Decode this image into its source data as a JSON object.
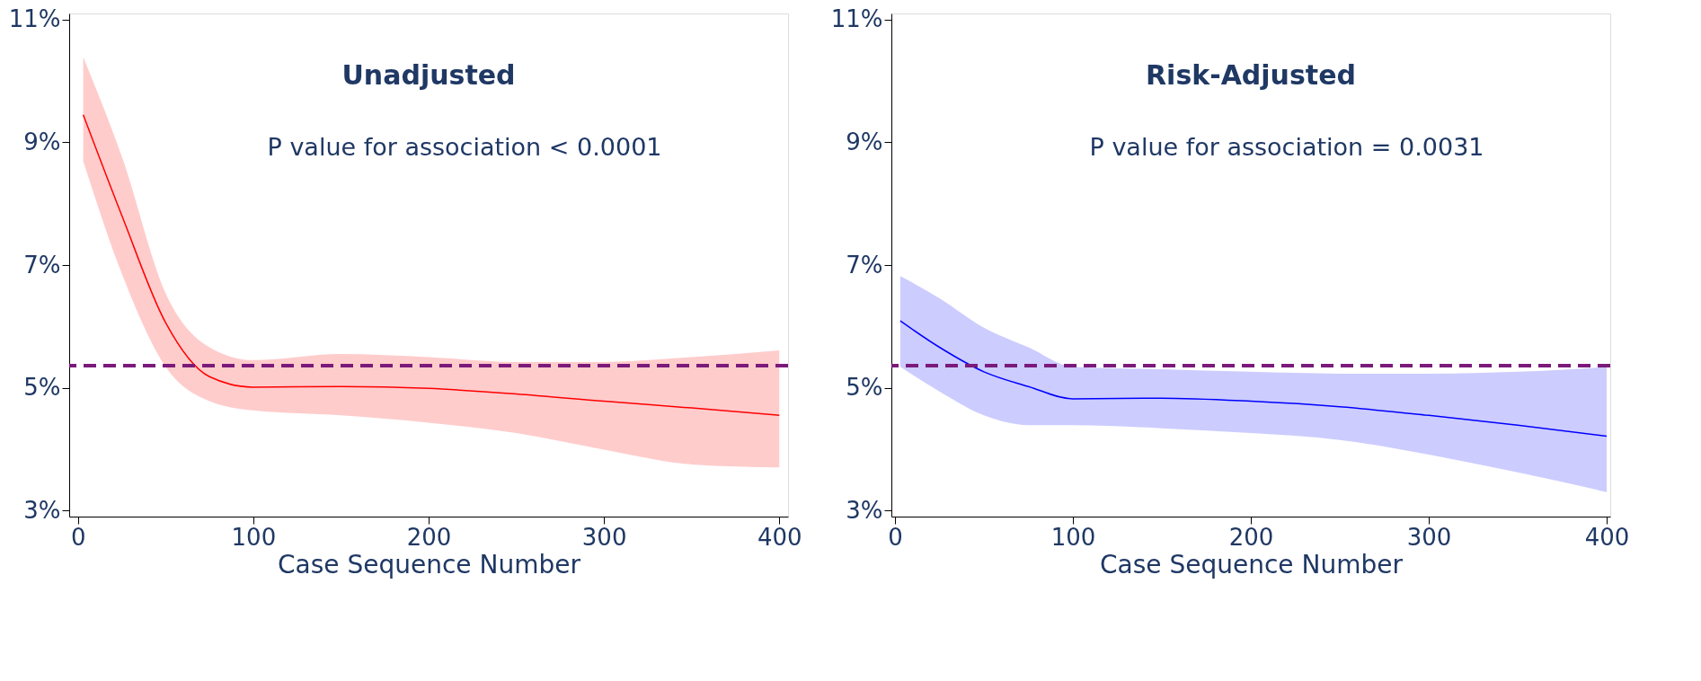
{
  "chart_data": [
    {
      "type": "line",
      "title": "Unadjusted",
      "xlabel": "Case Sequence Number",
      "annotations": [
        "P value for association < 0.0001"
      ],
      "series": [
        {
          "color": "#ff0000",
          "x": [
            3,
            25,
            50,
            75,
            100,
            150,
            200,
            250,
            300,
            350,
            400
          ],
          "values": [
            9.45,
            7.81,
            6.06,
            5.18,
            5.01,
            5.02,
            4.99,
            4.9,
            4.78,
            4.67,
            4.55
          ],
          "lower": [
            8.69,
            6.86,
            5.34,
            4.78,
            4.63,
            4.55,
            4.43,
            4.26,
            3.99,
            3.75,
            3.7
          ],
          "upper": [
            10.39,
            8.77,
            6.54,
            5.66,
            5.45,
            5.55,
            5.5,
            5.42,
            5.42,
            5.5,
            5.61
          ]
        }
      ],
      "xlim": [
        -5,
        405
      ],
      "xticks": [
        0,
        100,
        200,
        300,
        400
      ],
      "ylim": [
        2.9,
        11.1
      ],
      "yticks": [
        {
          "value": 3,
          "label": "3%"
        },
        {
          "value": 5,
          "label": "5%"
        },
        {
          "value": 7,
          "label": "7%"
        },
        {
          "value": 9,
          "label": "9%"
        },
        {
          "value": 11,
          "label": "11%"
        }
      ],
      "ref_lines": [
        {
          "axis": "y",
          "value": 5.36,
          "color": "#7b1a7b",
          "line_style": "dashed"
        }
      ],
      "grid": false
    },
    {
      "type": "line",
      "title": "Risk-Adjusted",
      "xlabel": "Case Sequence Number",
      "annotations": [
        "P value for association = 0.0031"
      ],
      "series": [
        {
          "color": "#0000ff",
          "x": [
            3,
            25,
            50,
            75,
            100,
            150,
            200,
            250,
            300,
            350,
            400
          ],
          "values": [
            6.09,
            5.66,
            5.26,
            5.02,
            4.82,
            4.83,
            4.78,
            4.69,
            4.55,
            4.39,
            4.21
          ],
          "lower": [
            5.34,
            4.94,
            4.55,
            4.39,
            4.39,
            4.34,
            4.26,
            4.15,
            3.91,
            3.62,
            3.3
          ],
          "upper": [
            6.82,
            6.46,
            5.98,
            5.66,
            5.34,
            5.3,
            5.26,
            5.23,
            5.23,
            5.26,
            5.34
          ]
        }
      ],
      "xlim": [
        -2,
        402
      ],
      "xticks": [
        0,
        100,
        200,
        300,
        400
      ],
      "ylim": [
        2.9,
        11.1
      ],
      "yticks": [
        {
          "value": 3,
          "label": "3%"
        },
        {
          "value": 5,
          "label": "5%"
        },
        {
          "value": 7,
          "label": "7%"
        },
        {
          "value": 9,
          "label": "9%"
        },
        {
          "value": 11,
          "label": "11%"
        }
      ],
      "ref_lines": [
        {
          "axis": "y",
          "value": 5.36,
          "color": "#7b1a7b",
          "line_style": "dashed"
        }
      ],
      "grid": false
    }
  ]
}
